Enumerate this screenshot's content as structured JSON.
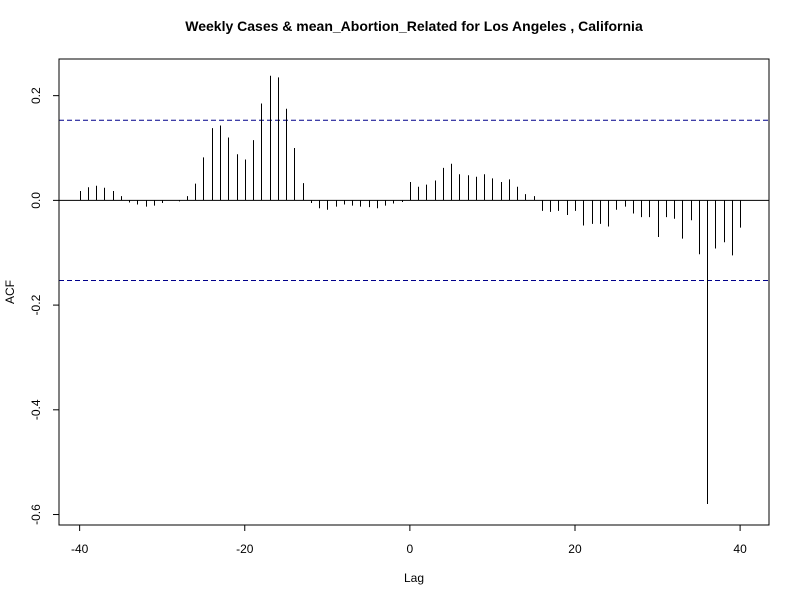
{
  "chart_data": {
    "type": "bar",
    "title": "Weekly Cases & mean_Abortion_Related for Los Angeles , California",
    "xlabel": "Lag",
    "ylabel": "ACF",
    "xlim": [
      -42.5,
      43.5
    ],
    "ylim": [
      -0.62,
      0.27
    ],
    "x_ticks": [
      -40,
      -20,
      0,
      20,
      40
    ],
    "y_ticks": [
      -0.6,
      -0.4,
      -0.2,
      0.0,
      0.2
    ],
    "x_tick_labels": [
      "-40",
      "-20",
      "0",
      "20",
      "40"
    ],
    "y_tick_labels": [
      "-0.6",
      "-0.4",
      "-0.2",
      "0.0",
      "0.2"
    ],
    "confidence_band": 0.153,
    "confidence_color": "#00008b",
    "lags": [
      -40,
      -39,
      -38,
      -37,
      -36,
      -35,
      -34,
      -33,
      -32,
      -31,
      -30,
      -29,
      -28,
      -27,
      -26,
      -25,
      -24,
      -23,
      -22,
      -21,
      -20,
      -19,
      -18,
      -17,
      -16,
      -15,
      -14,
      -13,
      -12,
      -11,
      -10,
      -9,
      -8,
      -7,
      -6,
      -5,
      -4,
      -3,
      -2,
      -1,
      0,
      1,
      2,
      3,
      4,
      5,
      6,
      7,
      8,
      9,
      10,
      11,
      12,
      13,
      14,
      15,
      16,
      17,
      18,
      19,
      20,
      21,
      22,
      23,
      24,
      25,
      26,
      27,
      28,
      29,
      30,
      31,
      32,
      33,
      34,
      35,
      36,
      37,
      38,
      39,
      40
    ],
    "acf": [
      0.018,
      0.025,
      0.028,
      0.024,
      0.018,
      0.008,
      -0.004,
      -0.008,
      -0.012,
      -0.01,
      -0.005,
      0.0,
      -0.002,
      0.008,
      0.032,
      0.082,
      0.138,
      0.143,
      0.12,
      0.088,
      0.078,
      0.115,
      0.185,
      0.238,
      0.235,
      0.175,
      0.1,
      0.033,
      -0.005,
      -0.015,
      -0.018,
      -0.012,
      -0.008,
      -0.01,
      -0.012,
      -0.013,
      -0.015,
      -0.01,
      -0.006,
      -0.003,
      0.035,
      0.026,
      0.03,
      0.038,
      0.062,
      0.07,
      0.05,
      0.048,
      0.045,
      0.05,
      0.042,
      0.035,
      0.04,
      0.026,
      0.012,
      0.008,
      -0.02,
      -0.022,
      -0.02,
      -0.028,
      -0.02,
      -0.048,
      -0.045,
      -0.045,
      -0.05,
      -0.018,
      -0.012,
      -0.025,
      -0.032,
      -0.032,
      -0.07,
      -0.032,
      -0.035,
      -0.073,
      -0.038,
      -0.103,
      -0.58,
      -0.092,
      -0.08,
      -0.105,
      -0.052
    ]
  }
}
